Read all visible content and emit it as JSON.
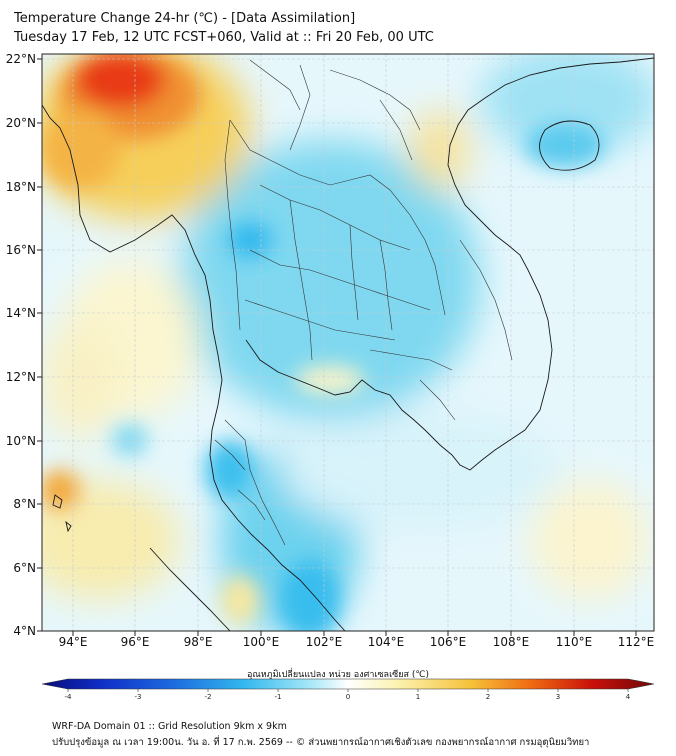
{
  "title": {
    "line1": "Temperature Change 24-hr (℃) - [Data Assimilation]",
    "line2": "Tuesday 17 Feb, 12 UTC FCST+060, Valid at :: Fri 20 Feb, 00 UTC"
  },
  "map": {
    "lat_ticks": [
      "22°N",
      "20°N",
      "18°N",
      "16°N",
      "14°N",
      "12°N",
      "10°N",
      "8°N",
      "6°N",
      "4°N"
    ],
    "lon_ticks": [
      "94°E",
      "96°E",
      "98°E",
      "100°E",
      "102°E",
      "104°E",
      "106°E",
      "108°E",
      "110°E",
      "112°E"
    ],
    "lat_range": [
      4,
      22.2
    ],
    "lon_range": [
      93,
      112.8
    ]
  },
  "colorbar": {
    "title": "อุณหภูมิเปลี่ยนแปลง หน่วย องศาเซลเซียส (℃)",
    "min": -4,
    "max": 4,
    "ticks": [
      "-4",
      "-3",
      "-2",
      "-1",
      "0",
      "1",
      "2",
      "3",
      "4"
    ],
    "colors": [
      "#0a0a7a",
      "#1030c8",
      "#1e6ee0",
      "#33b8ee",
      "#a8e8f8",
      "#ffffff",
      "#fbf3b0",
      "#f6c23a",
      "#ef6a12",
      "#c8100a",
      "#700808"
    ]
  },
  "footer": {
    "line1": "WRF-DA Domain 01 :: Grid Resolution 9km x 9km",
    "line2": "ปรับปรุงข้อมูล ณ เวลา 19:00น. วัน อ. ที่ 17 ก.พ. 2569 -- © ส่วนพยากรณ์อากาศเชิงตัวเลข กองพยากรณ์อากาศ กรมอุตุนิยมวิทยา"
  }
}
